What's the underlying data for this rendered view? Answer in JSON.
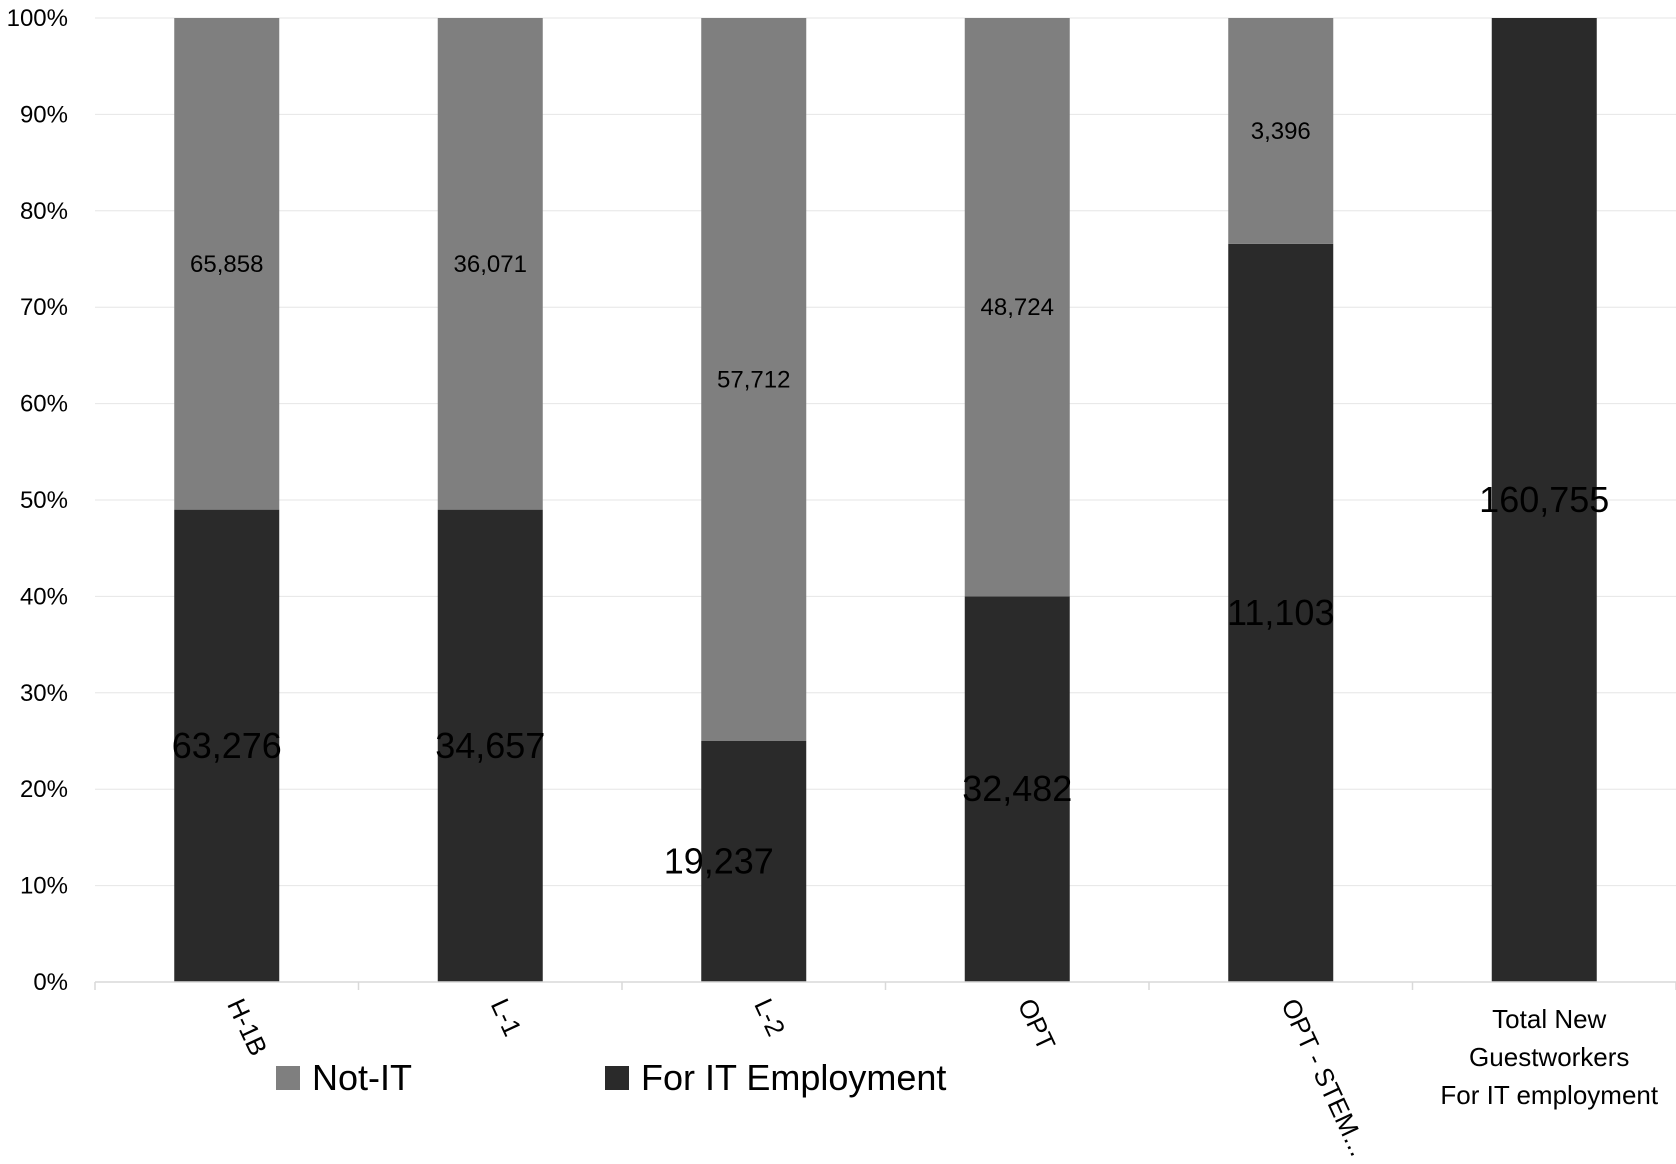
{
  "chart_data": {
    "type": "bar",
    "stacked": true,
    "normalized": true,
    "categories": [
      "H-1B",
      "L-1",
      "L-2",
      "OPT",
      "OPT - STEM...",
      "Total New Guestworkers For IT employment"
    ],
    "series": [
      {
        "name": "For IT Employment",
        "values": [
          63276,
          34657,
          19237,
          32482,
          11103,
          160755
        ],
        "labels": [
          "63,276",
          "34,657",
          "19,237",
          "32,482",
          "11,103",
          "160,755"
        ],
        "color": "#2a2a2a"
      },
      {
        "name": "Not-IT",
        "values": [
          65858,
          36071,
          57712,
          48724,
          3396,
          0
        ],
        "labels": [
          "65,858",
          "36,071",
          "57,712",
          "48,724",
          "3,396",
          ""
        ],
        "color": "#7f7f7f"
      }
    ],
    "yticks": [
      "0%",
      "10%",
      "20%",
      "30%",
      "40%",
      "50%",
      "60%",
      "70%",
      "80%",
      "90%",
      "100%"
    ],
    "ylim": [
      0,
      100
    ],
    "grid": true,
    "legend": {
      "position": "bottom",
      "order": [
        "Not-IT",
        "For IT Employment"
      ]
    }
  }
}
